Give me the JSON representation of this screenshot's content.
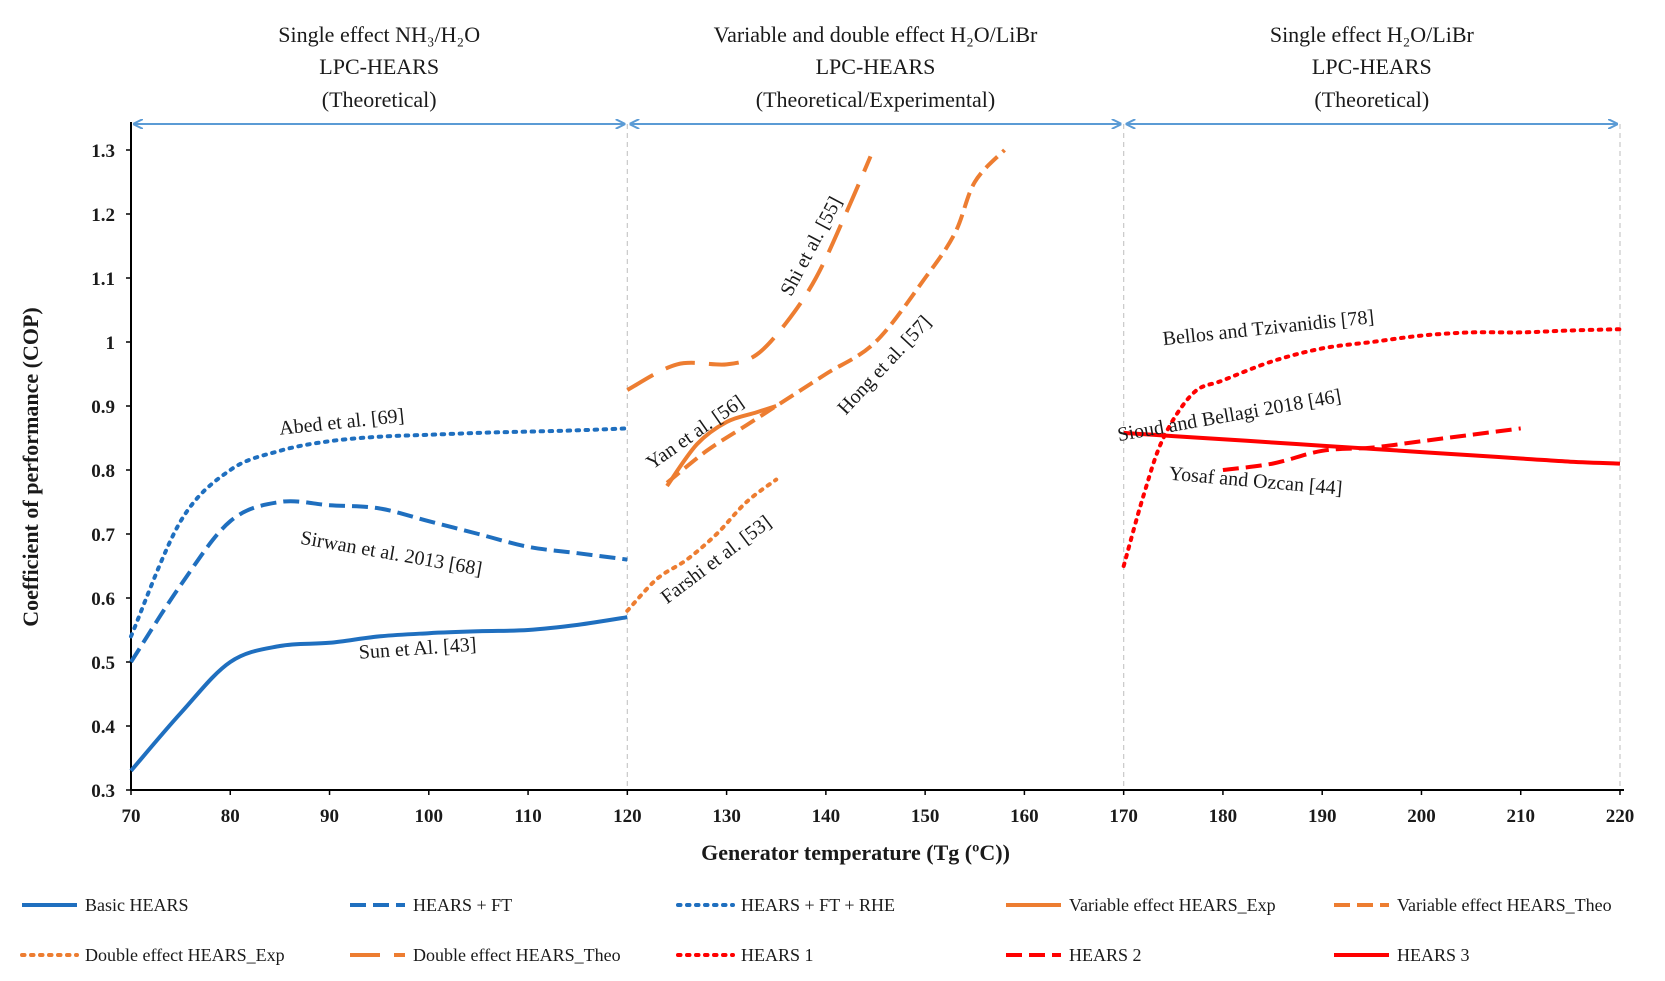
{
  "chart_data": {
    "type": "line",
    "xlabel": "Generator temperature (Tg (ºC))",
    "ylabel": "Coefficient of performance (COP)",
    "xlim": [
      70,
      220
    ],
    "ylim": [
      0.3,
      1.3
    ],
    "xticks": [
      "70",
      "80",
      "90",
      "100",
      "110",
      "120",
      "130",
      "140",
      "150",
      "160",
      "170",
      "180",
      "190",
      "200",
      "210",
      "220"
    ],
    "yticks": [
      "0.3",
      "0.4",
      "0.5",
      "0.6",
      "0.7",
      "0.8",
      "0.9",
      "1",
      "1.1",
      "1.2",
      "1.3"
    ],
    "regions": [
      {
        "line1": "Single effect NH₃/H₂O",
        "line2": "LPC-HEARS",
        "line3": "(Theoretical)",
        "range": [
          70,
          120
        ]
      },
      {
        "line1": "Variable and double effect H₂O/LiBr",
        "line2": "LPC-HEARS",
        "line3": "(Theoretical/Experimental)",
        "range": [
          120,
          170
        ]
      },
      {
        "line1": "Single effect H₂O/LiBr",
        "line2": "LPC-HEARS",
        "line3": "(Theoretical)",
        "range": [
          170,
          220
        ]
      }
    ],
    "series": [
      {
        "name": "Basic HEARS",
        "color": "#1f6fbf",
        "dash": "solid",
        "x": [
          70,
          75,
          80,
          85,
          90,
          95,
          100,
          105,
          110,
          115,
          120
        ],
        "y": [
          0.33,
          0.42,
          0.5,
          0.525,
          0.53,
          0.54,
          0.545,
          0.548,
          0.55,
          0.558,
          0.57
        ]
      },
      {
        "name": "HEARS + FT",
        "color": "#1f6fbf",
        "dash": "dash",
        "x": [
          70,
          75,
          80,
          85,
          90,
          95,
          100,
          105,
          110,
          115,
          120
        ],
        "y": [
          0.5,
          0.62,
          0.72,
          0.75,
          0.745,
          0.74,
          0.72,
          0.7,
          0.68,
          0.67,
          0.66
        ]
      },
      {
        "name": "HEARS + FT + RHE",
        "color": "#1f6fbf",
        "dash": "dot",
        "x": [
          70,
          75,
          80,
          85,
          90,
          95,
          100,
          105,
          110,
          115,
          120
        ],
        "y": [
          0.54,
          0.72,
          0.8,
          0.83,
          0.845,
          0.852,
          0.855,
          0.858,
          0.86,
          0.862,
          0.865
        ]
      },
      {
        "name": "Variable effect HEARS_Exp",
        "color": "#ed7d31",
        "dash": "solid",
        "x": [
          124,
          127,
          130,
          133,
          135
        ],
        "y": [
          0.775,
          0.84,
          0.875,
          0.89,
          0.9
        ]
      },
      {
        "name": "Variable effect HEARS_Theo",
        "color": "#ed7d31",
        "dash": "dash",
        "x": [
          124,
          128,
          132,
          136,
          140,
          145,
          150,
          153,
          155,
          158
        ],
        "y": [
          0.78,
          0.83,
          0.87,
          0.91,
          0.95,
          1.0,
          1.1,
          1.17,
          1.25,
          1.3
        ]
      },
      {
        "name": "Double effect HEARS_Exp",
        "color": "#ed7d31",
        "dash": "dot",
        "x": [
          120,
          123,
          126,
          129,
          132,
          135
        ],
        "y": [
          0.58,
          0.63,
          0.66,
          0.7,
          0.75,
          0.785
        ]
      },
      {
        "name": "Double effect HEARS_Theo",
        "color": "#ed7d31",
        "dash": "longdash",
        "x": [
          120,
          125,
          130,
          133,
          136,
          139,
          142,
          144.5
        ],
        "y": [
          0.925,
          0.965,
          0.965,
          0.98,
          1.03,
          1.1,
          1.2,
          1.29
        ]
      },
      {
        "name": "HEARS 1",
        "color": "#ff0000",
        "dash": "dot",
        "x": [
          170,
          172,
          174,
          177,
          180,
          185,
          190,
          195,
          200,
          205,
          210,
          215,
          220
        ],
        "y": [
          0.65,
          0.76,
          0.85,
          0.92,
          0.94,
          0.97,
          0.99,
          1.0,
          1.01,
          1.015,
          1.015,
          1.018,
          1.02
        ]
      },
      {
        "name": "HEARS 2",
        "color": "#ff0000",
        "dash": "dash",
        "x": [
          180,
          185,
          190,
          195,
          200,
          205,
          210
        ],
        "y": [
          0.8,
          0.81,
          0.83,
          0.835,
          0.845,
          0.855,
          0.865
        ]
      },
      {
        "name": "HEARS 3",
        "color": "#ff0000",
        "dash": "solid",
        "x": [
          170,
          175,
          180,
          185,
          190,
          195,
          200,
          205,
          210,
          215,
          220
        ],
        "y": [
          0.858,
          0.853,
          0.848,
          0.843,
          0.838,
          0.833,
          0.828,
          0.823,
          0.818,
          0.813,
          0.81
        ]
      }
    ],
    "annotations": [
      {
        "text": "Abed et al. [69]",
        "x": 85,
        "y": 0.855,
        "rotate": -6
      },
      {
        "text": "Sirwan et al. 2013 [68]",
        "x": 87,
        "y": 0.685,
        "rotate": 10
      },
      {
        "text": "Sun et Al. [43]",
        "x": 93,
        "y": 0.505,
        "rotate": -4
      },
      {
        "text": "Shi et al. [55]",
        "x": 136.5,
        "y": 1.07,
        "rotate": -62
      },
      {
        "text": "Hong et al. [57]",
        "x": 142,
        "y": 0.885,
        "rotate": -47
      },
      {
        "text": "Yan et al. [56]",
        "x": 122.5,
        "y": 0.8,
        "rotate": -35
      },
      {
        "text": "Farshi et al. [53]",
        "x": 124,
        "y": 0.59,
        "rotate": -37
      },
      {
        "text": "Bellos and Tzivanidis [78]",
        "x": 174,
        "y": 0.995,
        "rotate": -6
      },
      {
        "text": "Sioud and Bellagi 2018 [46]",
        "x": 169.5,
        "y": 0.845,
        "rotate": -10
      },
      {
        "text": "Yosaf and Ozcan [44]",
        "x": 174.5,
        "y": 0.785,
        "rotate": 5
      }
    ]
  }
}
